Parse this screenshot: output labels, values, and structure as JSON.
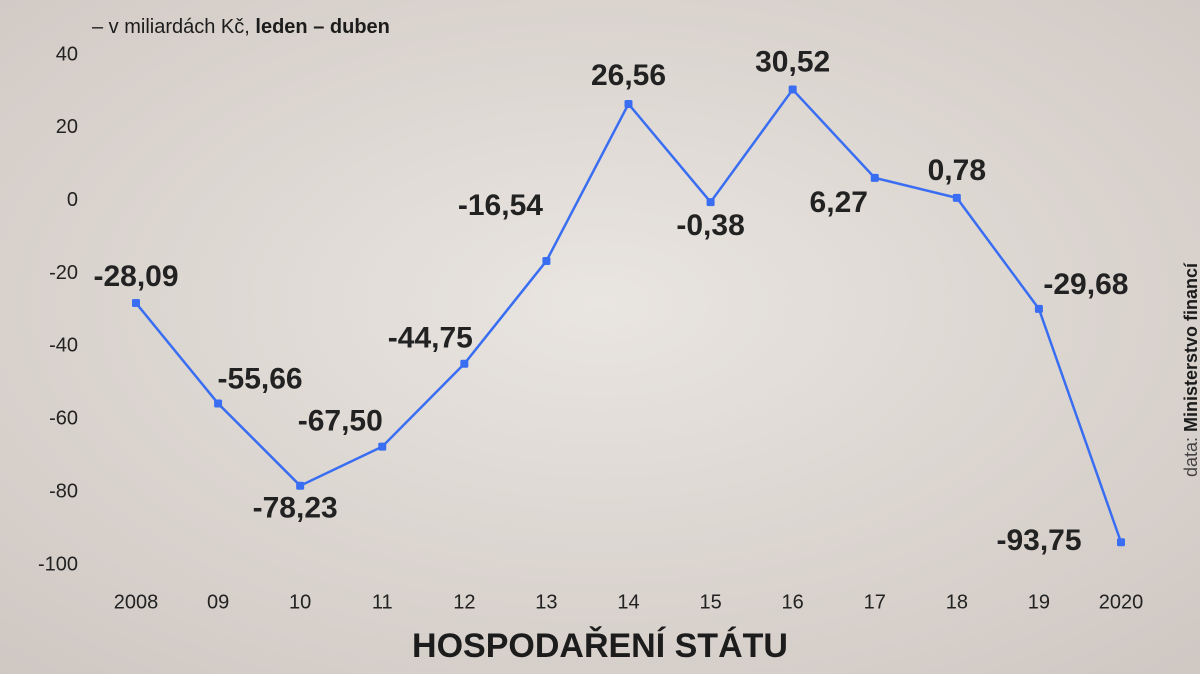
{
  "chart_data": {
    "type": "line",
    "title": "HOSPODAŘENÍ STÁTU",
    "subtitle": "– v miliardách Kč,",
    "subtitle_bold": "leden – duben",
    "source_prefix": "data:",
    "source": "Ministerstvo financí",
    "categories": [
      "2008",
      "09",
      "10",
      "11",
      "12",
      "13",
      "14",
      "15",
      "16",
      "17",
      "18",
      "19",
      "2020"
    ],
    "series": [
      {
        "color": "#3a6ef2",
        "values": [
          -28.09,
          -55.66,
          -78.23,
          -67.5,
          -44.75,
          -16.54,
          26.56,
          -0.38,
          30.52,
          6.27,
          0.78,
          -29.68,
          -93.75
        ],
        "value_labels": [
          "-28,09",
          "-55,66",
          "-78,23",
          "-67,50",
          "-44,75",
          "-16,54",
          "26,56",
          "-0,38",
          "30,52",
          "6,27",
          "0,78",
          "-29,68",
          "-93,75"
        ]
      }
    ],
    "ylim": [
      -100,
      40
    ],
    "yticks": [
      -100,
      -80,
      -60,
      -40,
      -20,
      0,
      20,
      40
    ],
    "grid": false
  }
}
